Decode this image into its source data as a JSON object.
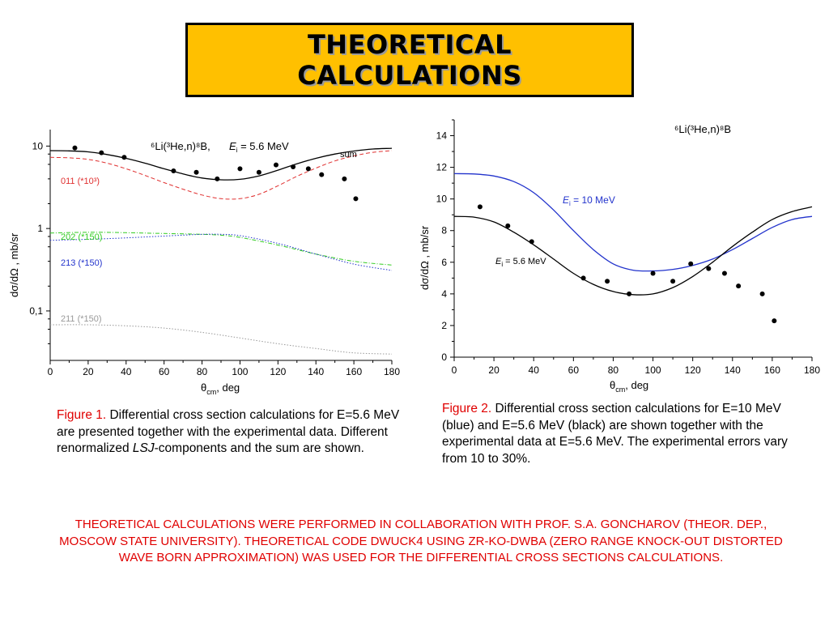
{
  "title": {
    "line1": "THEORETICAL",
    "line2": "CALCULATIONS"
  },
  "chart_data": [
    {
      "type": "line",
      "yscale": "log",
      "xlim": [
        0,
        180
      ],
      "ylim_log10": [
        -1.6,
        1.2
      ],
      "x_ticks": [
        "0",
        "20",
        "40",
        "60",
        "80",
        "100",
        "120",
        "140",
        "160",
        "180"
      ],
      "y_ticks": [
        "0,1",
        "1",
        "10"
      ],
      "xlabel": {
        "main": "θ",
        "sub": "cm",
        "rest": ", deg"
      },
      "ylabel": "dσ/dΩ ,  mb/sr",
      "reaction_label": "⁶Li(³He,n)⁸B,",
      "energy_label": {
        "E": "E",
        "sub": "i",
        "rest": " = 5.6 MeV"
      },
      "series": [
        {
          "name": "sum",
          "color": "#000000",
          "style": "solid",
          "x": [
            0,
            10,
            20,
            30,
            40,
            50,
            60,
            70,
            80,
            90,
            100,
            110,
            120,
            130,
            140,
            150,
            160,
            170,
            180
          ],
          "y": [
            8.8,
            8.75,
            8.5,
            7.9,
            7.1,
            6.2,
            5.3,
            4.6,
            4.1,
            3.9,
            3.95,
            4.35,
            5.1,
            6.1,
            7.1,
            8.0,
            8.7,
            9.2,
            9.4
          ]
        },
        {
          "name": "011 (*10³)",
          "color": "#e03030",
          "style": "dashed",
          "x": [
            0,
            10,
            20,
            30,
            40,
            50,
            60,
            70,
            80,
            90,
            100,
            110,
            120,
            130,
            140,
            150,
            160,
            170,
            180
          ],
          "y": [
            7.3,
            7.2,
            6.9,
            6.2,
            5.3,
            4.4,
            3.6,
            3.0,
            2.55,
            2.3,
            2.3,
            2.6,
            3.3,
            4.3,
            5.4,
            6.6,
            7.6,
            8.4,
            8.8
          ]
        },
        {
          "name": "202 (*150)",
          "color": "#33cc22",
          "style": "dashdot",
          "x": [
            0,
            20,
            40,
            60,
            80,
            90,
            100,
            120,
            140,
            160,
            180
          ],
          "y": [
            0.88,
            0.9,
            0.89,
            0.87,
            0.85,
            0.83,
            0.78,
            0.63,
            0.49,
            0.4,
            0.36
          ]
        },
        {
          "name": "213 (*150)",
          "color": "#2233cc",
          "style": "dotted",
          "x": [
            0,
            20,
            40,
            60,
            80,
            90,
            100,
            120,
            140,
            160,
            180
          ],
          "y": [
            0.72,
            0.74,
            0.77,
            0.81,
            0.85,
            0.85,
            0.82,
            0.66,
            0.49,
            0.37,
            0.31
          ]
        },
        {
          "name": "211 (*150)",
          "color": "#999999",
          "style": "dotted",
          "x": [
            0,
            20,
            40,
            60,
            80,
            100,
            120,
            140,
            160,
            180
          ],
          "y": [
            0.068,
            0.068,
            0.066,
            0.062,
            0.055,
            0.047,
            0.04,
            0.035,
            0.031,
            0.03
          ]
        }
      ],
      "points": {
        "x": [
          13,
          27,
          39,
          65,
          77,
          88,
          100,
          110,
          119,
          128,
          136,
          143,
          155,
          161
        ],
        "y": [
          9.5,
          8.3,
          7.3,
          5.0,
          4.8,
          4.0,
          5.3,
          4.8,
          5.9,
          5.6,
          5.3,
          4.5,
          4.0,
          2.3
        ]
      }
    },
    {
      "type": "line",
      "xlim": [
        0,
        180
      ],
      "ylim": [
        0,
        15
      ],
      "x_ticks": [
        "0",
        "20",
        "40",
        "60",
        "80",
        "100",
        "120",
        "140",
        "160",
        "180"
      ],
      "y_ticks": [
        "0",
        "2",
        "4",
        "6",
        "8",
        "10",
        "12",
        "14"
      ],
      "xlabel": {
        "main": "θ",
        "sub": "cm",
        "rest": ", deg"
      },
      "ylabel": "dσ/dΩ ,  mb/sr",
      "reaction_label": "⁶Li(³He,n)⁸B",
      "series": [
        {
          "name": "10 MeV",
          "label": {
            "E": "E",
            "sub": "i",
            "rest": " = 10 MeV"
          },
          "color": "#2233cc",
          "x": [
            0,
            10,
            20,
            30,
            40,
            50,
            60,
            70,
            80,
            90,
            100,
            110,
            120,
            130,
            140,
            150,
            160,
            170,
            180
          ],
          "y": [
            11.6,
            11.58,
            11.45,
            11.1,
            10.4,
            9.3,
            8.0,
            6.8,
            5.9,
            5.5,
            5.45,
            5.55,
            5.8,
            6.2,
            6.8,
            7.5,
            8.2,
            8.7,
            8.9
          ]
        },
        {
          "name": "5.6 MeV",
          "label": {
            "E": "E",
            "sub": "i",
            "rest": " = 5.6 MeV"
          },
          "color": "#000000",
          "x": [
            0,
            10,
            20,
            30,
            40,
            50,
            60,
            70,
            80,
            90,
            100,
            110,
            120,
            130,
            140,
            150,
            160,
            170,
            180
          ],
          "y": [
            8.9,
            8.85,
            8.55,
            7.9,
            7.1,
            6.2,
            5.3,
            4.6,
            4.15,
            3.95,
            4.0,
            4.4,
            5.1,
            6.0,
            7.0,
            7.9,
            8.7,
            9.2,
            9.5
          ]
        }
      ],
      "points": {
        "x": [
          13,
          27,
          39,
          65,
          77,
          88,
          100,
          110,
          119,
          128,
          136,
          143,
          155,
          161
        ],
        "y": [
          9.5,
          8.3,
          7.3,
          5.0,
          4.8,
          4.0,
          5.3,
          4.8,
          5.9,
          5.6,
          5.3,
          4.5,
          4.0,
          2.3
        ]
      }
    }
  ],
  "caption1": {
    "label": "Figure 1.",
    "text1": " Differential cross section calculations for E=5.6 MeV are presented together with the experimental data. Different renormalized ",
    "italic": "LSJ",
    "text2": "-components and the sum are shown."
  },
  "caption2": {
    "label": "Figure 2.",
    "text": " Differential cross section calculations for E=10 MeV (blue) and E=5.6 MeV (black) are shown together with the experimental data at E=5.6 MeV. The experimental errors vary from 10 to 30%."
  },
  "footer": "THEORETICAL CALCULATIONS WERE PERFORMED IN COLLABORATION WITH PROF. S.A. GONCHAROV (THEOR. DEP., MOSCOW STATE UNIVERSITY). THEORETICAL CODE DWUCK4 USING ZR-KO-DWBA (ZERO RANGE KNOCK-OUT DISTORTED WAVE BORN APPROXIMATION) WAS USED FOR THE DIFFERENTIAL CROSS SECTIONS CALCULATIONS."
}
